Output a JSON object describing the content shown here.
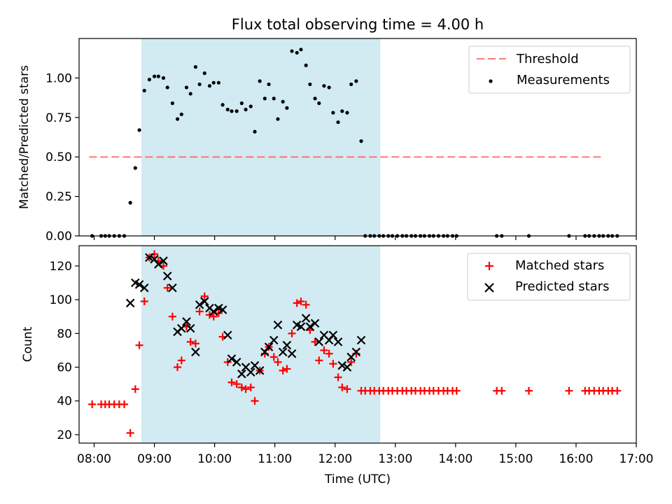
{
  "chart_data": [
    {
      "type": "scatter",
      "title": "Flux total observing time = 4.00 h",
      "xlabel": "",
      "ylabel": "Matched/Predicted stars",
      "xlim": [
        "07:45",
        "17:00"
      ],
      "ylim": [
        0,
        1.25
      ],
      "yticks": [
        "0.00",
        "0.25",
        "0.50",
        "0.75",
        "1.00"
      ],
      "shaded_region": [
        "08:47",
        "12:45"
      ],
      "legend": {
        "position": "top-right",
        "entries": [
          "Threshold",
          "Measurements"
        ]
      },
      "threshold": {
        "name": "Threshold",
        "x": [
          "07:55",
          "16:25"
        ],
        "y": 0.5
      },
      "series": [
        {
          "name": "Measurements",
          "x": [
            "07:58",
            "08:07",
            "08:11",
            "08:15",
            "08:20",
            "08:25",
            "08:30",
            "08:36",
            "08:41",
            "08:45",
            "08:50",
            "08:55",
            "09:00",
            "09:04",
            "09:09",
            "09:13",
            "09:18",
            "09:23",
            "09:27",
            "09:32",
            "09:36",
            "09:41",
            "09:45",
            "09:50",
            "09:55",
            "09:59",
            "10:04",
            "10:08",
            "10:13",
            "10:17",
            "10:22",
            "10:27",
            "10:31",
            "10:36",
            "10:40",
            "10:45",
            "10:50",
            "10:54",
            "10:59",
            "11:03",
            "11:08",
            "11:12",
            "11:17",
            "11:22",
            "11:26",
            "11:31",
            "11:35",
            "11:40",
            "11:44",
            "11:49",
            "11:54",
            "11:58",
            "12:03",
            "12:07",
            "12:12",
            "12:16",
            "12:21",
            "12:26",
            "12:30",
            "12:35",
            "12:39",
            "12:44",
            "12:48",
            "12:53",
            "12:57",
            "13:02",
            "13:07",
            "13:11",
            "13:16",
            "13:20",
            "13:25",
            "13:29",
            "13:34",
            "13:38",
            "13:43",
            "13:48",
            "13:52",
            "13:57",
            "14:01",
            "14:41",
            "14:46",
            "15:13",
            "15:53",
            "16:09",
            "16:13",
            "16:18",
            "16:23",
            "16:27",
            "16:32",
            "16:36",
            "16:41"
          ],
          "y": [
            0,
            0,
            0,
            0,
            0,
            0,
            0,
            0.21,
            0.43,
            0.67,
            0.92,
            0.99,
            1.01,
            1.01,
            1.0,
            0.94,
            0.84,
            0.74,
            0.77,
            0.94,
            0.9,
            1.07,
            0.96,
            1.03,
            0.95,
            0.97,
            0.97,
            0.83,
            0.8,
            0.79,
            0.79,
            0.84,
            0.8,
            0.82,
            0.66,
            0.98,
            0.87,
            0.96,
            0.87,
            0.74,
            0.85,
            0.81,
            1.17,
            1.16,
            1.18,
            1.08,
            0.96,
            0.87,
            0.84,
            0.95,
            0.94,
            0.78,
            0.72,
            0.79,
            0.78,
            0.96,
            0.98,
            0.6,
            0,
            0,
            0,
            0,
            0,
            0,
            0,
            0,
            0,
            0,
            0,
            0,
            0,
            0,
            0,
            0,
            0,
            0,
            0,
            0,
            0,
            0,
            0,
            0,
            0,
            0,
            0,
            0,
            0,
            0,
            0,
            0,
            0
          ]
        }
      ]
    },
    {
      "type": "scatter",
      "title": "",
      "xlabel": "Time (UTC)",
      "ylabel": "Count",
      "xlim": [
        "07:45",
        "17:00"
      ],
      "ylim": [
        15,
        132
      ],
      "xticks": [
        "08:00",
        "09:00",
        "10:00",
        "11:00",
        "12:00",
        "13:00",
        "14:00",
        "15:00",
        "16:00",
        "17:00"
      ],
      "yticks": [
        "20",
        "40",
        "60",
        "80",
        "100",
        "120"
      ],
      "shaded_region": [
        "08:47",
        "12:45"
      ],
      "legend": {
        "position": "top-right",
        "entries": [
          "Matched stars",
          "Predicted stars"
        ]
      },
      "series": [
        {
          "name": "Matched stars",
          "x": [
            "07:58",
            "08:07",
            "08:11",
            "08:15",
            "08:20",
            "08:25",
            "08:30",
            "08:36",
            "08:41",
            "08:45",
            "08:50",
            "08:55",
            "09:00",
            "09:04",
            "09:09",
            "09:13",
            "09:18",
            "09:23",
            "09:27",
            "09:32",
            "09:36",
            "09:41",
            "09:45",
            "09:50",
            "09:55",
            "09:59",
            "10:04",
            "10:08",
            "10:13",
            "10:17",
            "10:22",
            "10:27",
            "10:31",
            "10:36",
            "10:40",
            "10:45",
            "10:50",
            "10:54",
            "10:59",
            "11:03",
            "11:08",
            "11:12",
            "11:17",
            "11:22",
            "11:26",
            "11:31",
            "11:35",
            "11:40",
            "11:44",
            "11:49",
            "11:54",
            "11:58",
            "12:03",
            "12:07",
            "12:12",
            "12:16",
            "12:21",
            "12:26",
            "12:30",
            "12:35",
            "12:39",
            "12:44",
            "12:48",
            "12:53",
            "12:57",
            "13:02",
            "13:07",
            "13:11",
            "13:16",
            "13:20",
            "13:25",
            "13:29",
            "13:34",
            "13:38",
            "13:43",
            "13:48",
            "13:52",
            "13:57",
            "14:01",
            "14:41",
            "14:46",
            "15:13",
            "15:53",
            "16:09",
            "16:13",
            "16:18",
            "16:23",
            "16:27",
            "16:32",
            "16:36",
            "16:41"
          ],
          "y": [
            38,
            38,
            38,
            38,
            38,
            38,
            38,
            21,
            47,
            73,
            99,
            125,
            127,
            123,
            120,
            107,
            90,
            60,
            64,
            84,
            75,
            74,
            93,
            102,
            91,
            90,
            92,
            78,
            63,
            51,
            50,
            48,
            47,
            48,
            40,
            58,
            68,
            72,
            66,
            63,
            58,
            59,
            80,
            98,
            99,
            97,
            82,
            75,
            64,
            70,
            68,
            62,
            54,
            48,
            47,
            63,
            68,
            46,
            46,
            46,
            46,
            46,
            46,
            46,
            46,
            46,
            46,
            46,
            46,
            46,
            46,
            46,
            46,
            46,
            46,
            46,
            46,
            46,
            46,
            46,
            46,
            46,
            46,
            46,
            46,
            46,
            46,
            46,
            46,
            46,
            46
          ]
        },
        {
          "name": "Predicted stars",
          "x": [
            "08:36",
            "08:41",
            "08:45",
            "08:50",
            "08:55",
            "09:00",
            "09:04",
            "09:09",
            "09:13",
            "09:18",
            "09:23",
            "09:27",
            "09:32",
            "09:36",
            "09:41",
            "09:45",
            "09:50",
            "09:55",
            "09:59",
            "10:04",
            "10:08",
            "10:13",
            "10:17",
            "10:22",
            "10:27",
            "10:31",
            "10:36",
            "10:40",
            "10:45",
            "10:50",
            "10:54",
            "10:59",
            "11:03",
            "11:08",
            "11:12",
            "11:17",
            "11:22",
            "11:26",
            "11:31",
            "11:35",
            "11:40",
            "11:44",
            "11:49",
            "11:54",
            "11:58",
            "12:03",
            "12:07",
            "12:12",
            "12:16",
            "12:21",
            "12:26"
          ],
          "y": [
            98,
            110,
            109,
            107,
            125,
            124,
            121,
            123,
            114,
            107,
            81,
            83,
            87,
            83,
            69,
            97,
            99,
            95,
            93,
            95,
            94,
            79,
            65,
            63,
            56,
            60,
            57,
            61,
            58,
            69,
            72,
            76,
            85,
            69,
            73,
            68,
            85,
            84,
            89,
            84,
            86,
            75,
            79,
            76,
            79,
            75,
            61,
            60,
            66,
            69,
            76
          ]
        }
      ]
    }
  ]
}
